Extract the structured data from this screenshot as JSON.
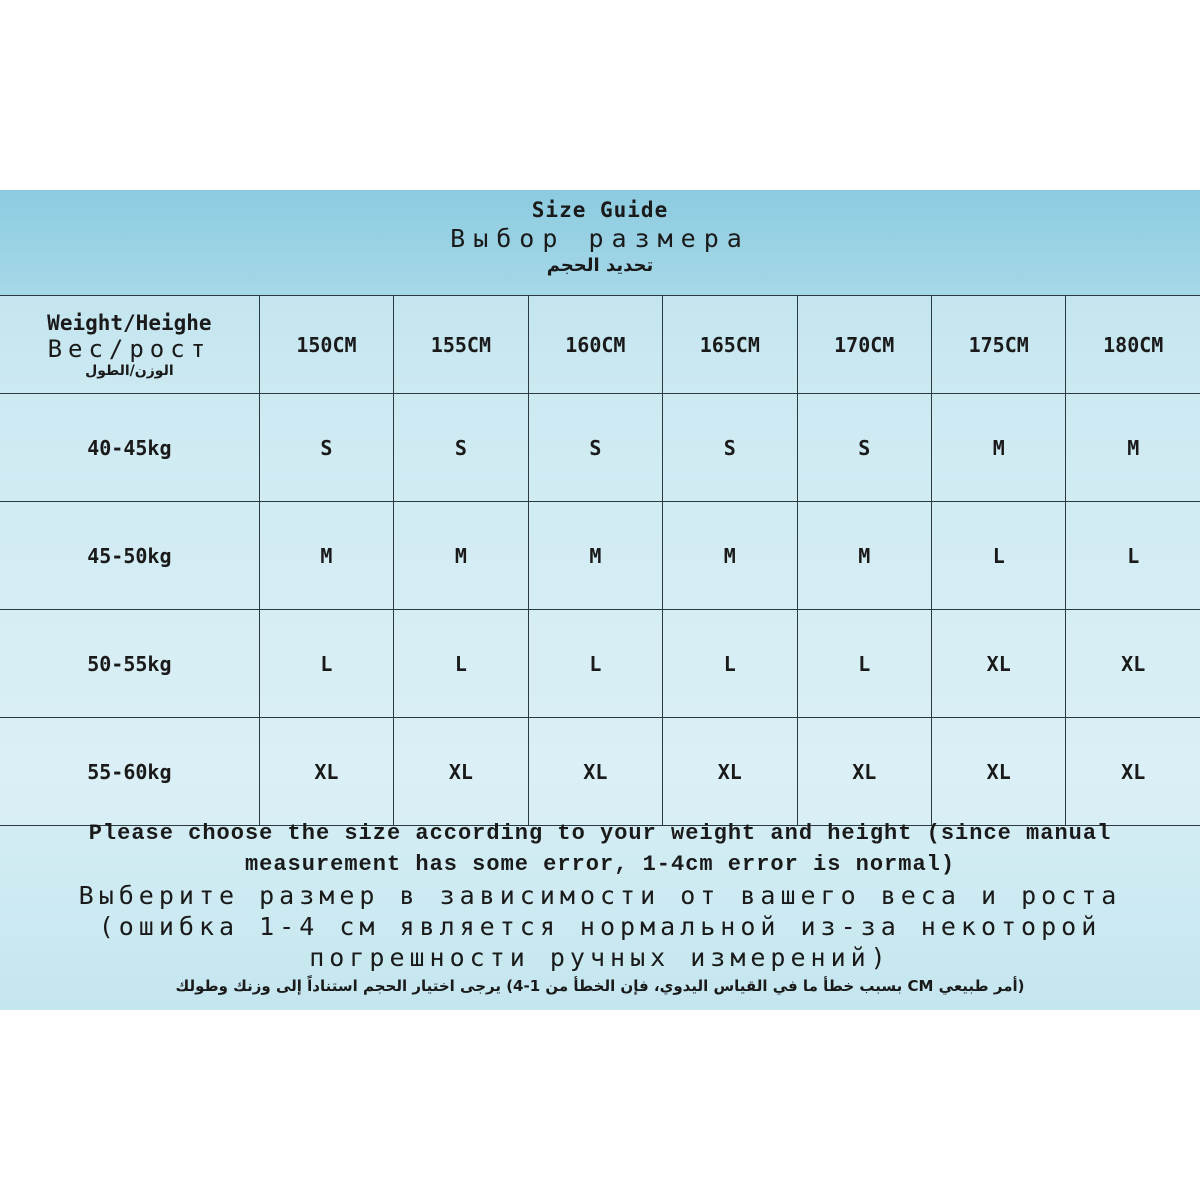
{
  "title": {
    "en": "Size Guide",
    "ru": "Выбор размера",
    "ar": "تحديد الحجم"
  },
  "header": {
    "corner_en": "Weight/Heighe",
    "corner_ru": "Вес/рост",
    "corner_ar": "الوزن/الطول",
    "heights": [
      "150CM",
      "155CM",
      "160CM",
      "165CM",
      "170CM",
      "175CM",
      "180CM"
    ]
  },
  "rows": [
    {
      "weight": "40-45kg",
      "sizes": [
        "S",
        "S",
        "S",
        "S",
        "S",
        "M",
        "M"
      ]
    },
    {
      "weight": "45-50kg",
      "sizes": [
        "M",
        "M",
        "M",
        "M",
        "M",
        "L",
        "L"
      ]
    },
    {
      "weight": "50-55kg",
      "sizes": [
        "L",
        "L",
        "L",
        "L",
        "L",
        "XL",
        "XL"
      ]
    },
    {
      "weight": "55-60kg",
      "sizes": [
        "XL",
        "XL",
        "XL",
        "XL",
        "XL",
        "XL",
        "XL"
      ]
    }
  ],
  "footer": {
    "en": "Please choose the size according to your weight and height (since manual measurement has some error, 1-4cm error is normal)",
    "ru": "Выберите размер в зависимости от вашего веса и роста (ошибка 1-4 см является нормальной из-за некоторой погрешности ручных измерений)",
    "ar": "(أمر طبيعي CM بسبب خطأ ما في القياس اليدوي، فإن الخطأ من 1-4) يرجى اختيار الحجم استناداً إلى وزنك وطولك"
  }
}
